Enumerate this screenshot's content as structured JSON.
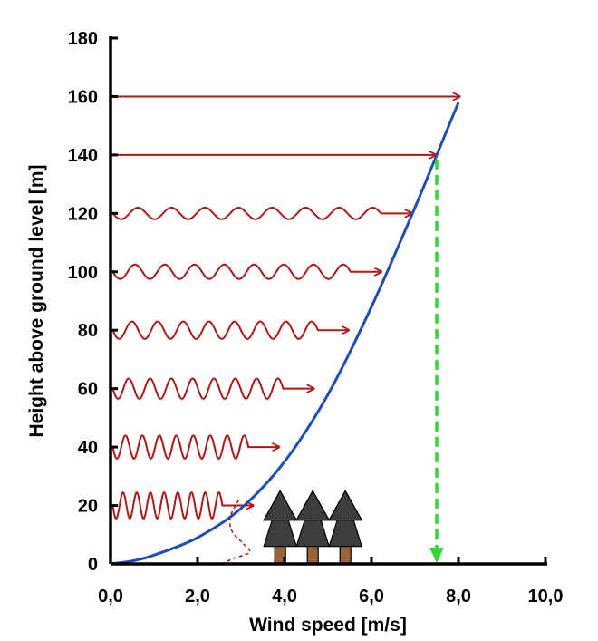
{
  "chart_data": {
    "type": "line",
    "title": "",
    "xlabel": "Wind speed [m/s]",
    "ylabel": "Height above ground level [m]",
    "xlim": [
      0,
      10
    ],
    "ylim": [
      0,
      180
    ],
    "x_ticks": [
      "0,0",
      "2,0",
      "4,0",
      "6,0",
      "8,0",
      "10,0"
    ],
    "y_ticks": [
      "0",
      "20",
      "40",
      "60",
      "80",
      "100",
      "120",
      "140",
      "160",
      "180"
    ],
    "grid": false,
    "legend": "none",
    "series": [
      {
        "kind": "wind-profile-curve",
        "points": [
          [
            0,
            0
          ],
          [
            0.5,
            1
          ],
          [
            1,
            3
          ],
          [
            2,
            9
          ],
          [
            3,
            19
          ],
          [
            4,
            35
          ],
          [
            5,
            58
          ],
          [
            6,
            88
          ],
          [
            7,
            122
          ],
          [
            7.5,
            140
          ],
          [
            8,
            158
          ]
        ]
      },
      {
        "kind": "canopy-wind-profile",
        "points": [
          [
            2.55,
            0
          ],
          [
            2.85,
            2
          ],
          [
            3.2,
            4
          ],
          [
            3.05,
            7
          ],
          [
            2.8,
            11
          ],
          [
            2.75,
            16
          ],
          [
            2.95,
            22
          ]
        ]
      }
    ],
    "wind_arrows": [
      {
        "height": 20,
        "speed": 3.3,
        "turbulent": true,
        "cycles": 8
      },
      {
        "height": 40,
        "speed": 3.9,
        "turbulent": true,
        "cycles": 8
      },
      {
        "height": 60,
        "speed": 4.7,
        "turbulent": true,
        "cycles": 8
      },
      {
        "height": 80,
        "speed": 5.5,
        "turbulent": true,
        "cycles": 8
      },
      {
        "height": 100,
        "speed": 6.25,
        "turbulent": true,
        "cycles": 8
      },
      {
        "height": 120,
        "speed": 6.95,
        "turbulent": true,
        "cycles": 8
      },
      {
        "height": 140,
        "speed": 7.5,
        "turbulent": false
      },
      {
        "height": 160,
        "speed": 8.05,
        "turbulent": false
      }
    ],
    "hub_height_marker": {
      "height": 140,
      "speed": 7.5
    },
    "trees": [
      3.9,
      4.65,
      5.4
    ],
    "colors": {
      "curve": "#1f4fb4",
      "arrows": "#b01717",
      "marker": "#33d633",
      "tree_crown": "#3d3d3d",
      "tree_trunk": "#9b6438",
      "axis": "#000000"
    }
  }
}
